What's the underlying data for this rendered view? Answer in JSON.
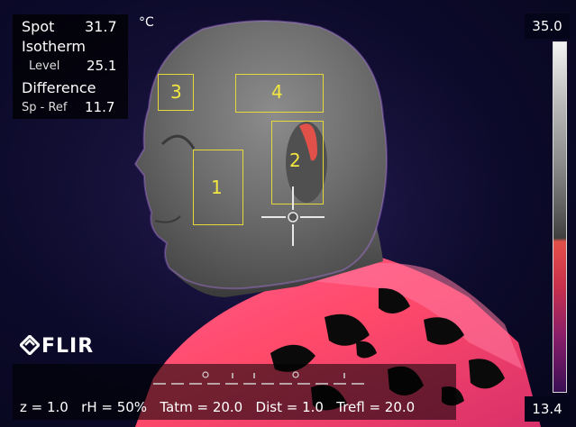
{
  "measurements": {
    "spot_label": "Spot",
    "spot_value": "31.7",
    "isotherm_label": "Isotherm",
    "level_label": "Level",
    "level_value": "25.1",
    "difference_label": "Difference",
    "sp_ref_label": "Sp - Ref",
    "sp_ref_value": "11.7"
  },
  "unit": "°C",
  "scale": {
    "max": "35.0",
    "min": "13.4"
  },
  "boxes": {
    "box1": "1",
    "box2": "2",
    "box3": "3",
    "box4": "4"
  },
  "logo": "FLIR",
  "params": {
    "z": "z = 1.0",
    "rh": "rH = 50%",
    "tatm": "Tatm = 20.0",
    "dist": "Dist = 1.0",
    "trefl": "Trefl = 20.0"
  },
  "colors": {
    "annotation": "#e8d838",
    "isotherm": "#e2504a",
    "hot": "#ff4a7a"
  },
  "icons": {
    "crosshair": "crosshair-icon",
    "logo": "flir-logo-icon"
  }
}
